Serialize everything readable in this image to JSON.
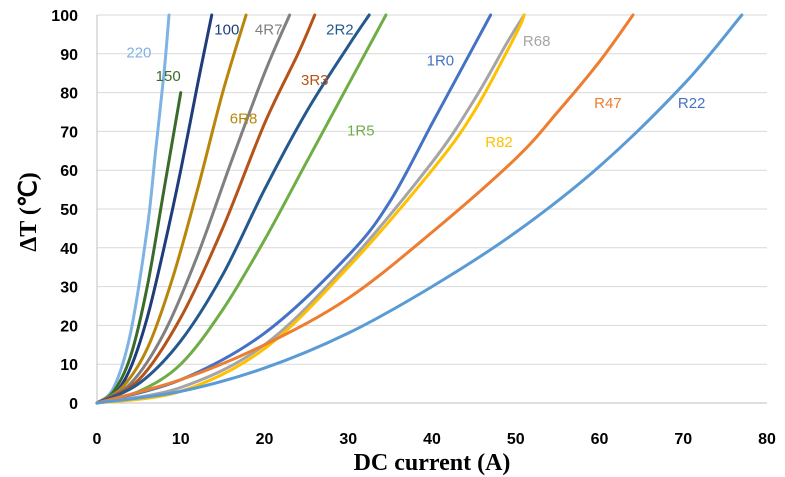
{
  "chart_data": {
    "type": "line",
    "title": "",
    "xlabel": "DC current (A)",
    "ylabel": "ΔT (℃)",
    "xlim": [
      0,
      80
    ],
    "ylim": [
      0,
      100
    ],
    "x_ticks": [
      0,
      10,
      20,
      30,
      40,
      50,
      60,
      70,
      80
    ],
    "y_ticks": [
      0,
      10,
      20,
      30,
      40,
      50,
      60,
      70,
      80,
      90,
      100
    ],
    "grid": true,
    "series": [
      {
        "name": "220",
        "color": "#7fb2e5",
        "points": [
          [
            0,
            0
          ],
          [
            2,
            4
          ],
          [
            4,
            18
          ],
          [
            6,
            45
          ],
          [
            7,
            65
          ],
          [
            8,
            85
          ],
          [
            8.6,
            100
          ]
        ]
      },
      {
        "name": "150",
        "color": "#3a6b2a",
        "points": [
          [
            0,
            0
          ],
          [
            2,
            3
          ],
          [
            4,
            12
          ],
          [
            6,
            30
          ],
          [
            8,
            55
          ],
          [
            10,
            80
          ]
        ]
      },
      {
        "name": "100",
        "color": "#1f3d7a",
        "points": [
          [
            0,
            0
          ],
          [
            2,
            2
          ],
          [
            4,
            9
          ],
          [
            6,
            22
          ],
          [
            8,
            40
          ],
          [
            10,
            60
          ],
          [
            12,
            82
          ],
          [
            13.7,
            100
          ]
        ]
      },
      {
        "name": "6R8",
        "color": "#b8860b",
        "points": [
          [
            0,
            0
          ],
          [
            3,
            4
          ],
          [
            6,
            14
          ],
          [
            9,
            32
          ],
          [
            12,
            55
          ],
          [
            15,
            80
          ],
          [
            17.8,
            100
          ]
        ]
      },
      {
        "name": "4R7",
        "color": "#808080",
        "points": [
          [
            0,
            0
          ],
          [
            4,
            5
          ],
          [
            8,
            18
          ],
          [
            12,
            38
          ],
          [
            16,
            62
          ],
          [
            20,
            85
          ],
          [
            23,
            100
          ]
        ]
      },
      {
        "name": "3R3",
        "color": "#b5531a",
        "points": [
          [
            0,
            0
          ],
          [
            5,
            6
          ],
          [
            10,
            22
          ],
          [
            15,
            45
          ],
          [
            20,
            72
          ],
          [
            24,
            90
          ],
          [
            26,
            100
          ]
        ]
      },
      {
        "name": "2R2",
        "color": "#24598f",
        "points": [
          [
            0,
            0
          ],
          [
            5,
            5
          ],
          [
            10,
            16
          ],
          [
            15,
            33
          ],
          [
            20,
            55
          ],
          [
            25,
            75
          ],
          [
            30,
            92
          ],
          [
            32.5,
            100
          ]
        ]
      },
      {
        "name": "1R5",
        "color": "#70ad47",
        "points": [
          [
            0,
            0
          ],
          [
            5,
            3
          ],
          [
            10,
            10
          ],
          [
            15,
            24
          ],
          [
            20,
            42
          ],
          [
            25,
            62
          ],
          [
            30,
            82
          ],
          [
            34.5,
            100
          ]
        ]
      },
      {
        "name": "1R0",
        "color": "#4472c4",
        "points": [
          [
            0,
            0
          ],
          [
            10,
            6
          ],
          [
            20,
            18
          ],
          [
            30,
            38
          ],
          [
            35,
            52
          ],
          [
            40,
            72
          ],
          [
            45,
            92
          ],
          [
            47,
            100
          ]
        ]
      },
      {
        "name": "R68",
        "color": "#a5a5a5",
        "points": [
          [
            0,
            0
          ],
          [
            10,
            4
          ],
          [
            20,
            15
          ],
          [
            30,
            36
          ],
          [
            40,
            62
          ],
          [
            45,
            78
          ],
          [
            49,
            93
          ],
          [
            51,
            100
          ]
        ]
      },
      {
        "name": "R82",
        "color": "#ffc000",
        "points": [
          [
            0,
            0
          ],
          [
            10,
            3
          ],
          [
            20,
            14
          ],
          [
            30,
            35
          ],
          [
            40,
            60
          ],
          [
            45,
            75
          ],
          [
            50,
            95
          ],
          [
            51,
            100
          ]
        ]
      },
      {
        "name": "R47",
        "color": "#ed7d31",
        "points": [
          [
            0,
            0
          ],
          [
            10,
            6
          ],
          [
            20,
            15
          ],
          [
            30,
            27
          ],
          [
            40,
            44
          ],
          [
            50,
            63
          ],
          [
            55,
            75
          ],
          [
            60,
            88
          ],
          [
            64,
            100
          ]
        ]
      },
      {
        "name": "R22",
        "color": "#5b9bd5",
        "points": [
          [
            0,
            0
          ],
          [
            10,
            3
          ],
          [
            20,
            9
          ],
          [
            30,
            18
          ],
          [
            40,
            30
          ],
          [
            50,
            44
          ],
          [
            60,
            61
          ],
          [
            70,
            82
          ],
          [
            77,
            100
          ]
        ]
      }
    ],
    "labels": [
      {
        "text": "220",
        "color": "#7fb2e5",
        "x": 5,
        "y": 89
      },
      {
        "text": "150",
        "color": "#3a6b2a",
        "x": 8.5,
        "y": 83
      },
      {
        "text": "100",
        "color": "#1f3d7a",
        "x": 15.5,
        "y": 95
      },
      {
        "text": "4R7",
        "color": "#808080",
        "x": 20.5,
        "y": 95
      },
      {
        "text": "2R2",
        "color": "#24598f",
        "x": 29,
        "y": 95
      },
      {
        "text": "6R8",
        "color": "#b8860b",
        "x": 17.5,
        "y": 72
      },
      {
        "text": "3R3",
        "color": "#b5531a",
        "x": 26,
        "y": 82
      },
      {
        "text": "1R5",
        "color": "#70ad47",
        "x": 31.5,
        "y": 69
      },
      {
        "text": "1R0",
        "color": "#4472c4",
        "x": 41,
        "y": 87
      },
      {
        "text": "R68",
        "color": "#a5a5a5",
        "x": 52.5,
        "y": 92
      },
      {
        "text": "R82",
        "color": "#ffc000",
        "x": 48,
        "y": 66
      },
      {
        "text": "R47",
        "color": "#ed7d31",
        "x": 61,
        "y": 76
      },
      {
        "text": "R22",
        "color": "#4472c4",
        "x": 71,
        "y": 76
      }
    ]
  }
}
